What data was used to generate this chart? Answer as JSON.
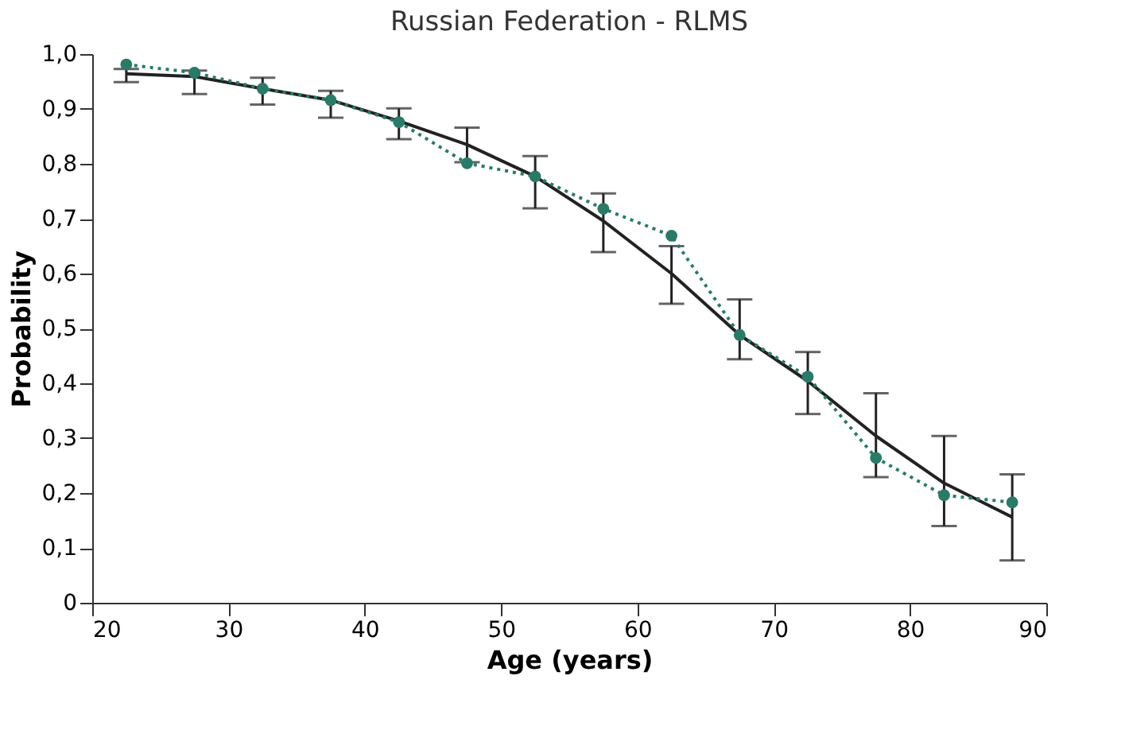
{
  "chart_data": {
    "type": "line",
    "title": "Russian Federation - RLMS",
    "xlabel": "Age (years)",
    "ylabel": "Probability",
    "x": [
      22.5,
      27.5,
      32.5,
      37.5,
      42.5,
      47.5,
      52.5,
      57.5,
      62.5,
      67.5,
      72.5,
      77.5,
      82.5,
      87.5
    ],
    "series": [
      {
        "color": "#222222",
        "line_style": "solid",
        "marker": "none",
        "values": [
          0.964,
          0.959,
          0.937,
          0.916,
          0.878,
          0.835,
          0.777,
          0.696,
          0.6,
          0.488,
          0.404,
          0.304,
          0.218,
          0.156
        ],
        "errors": [
          [
            0.949,
            0.973
          ],
          [
            0.927,
            0.97
          ],
          [
            0.908,
            0.957
          ],
          [
            0.884,
            0.933
          ],
          [
            0.845,
            0.901
          ],
          [
            0.803,
            0.866
          ],
          [
            0.719,
            0.814
          ],
          [
            0.639,
            0.746
          ],
          [
            0.545,
            0.65
          ],
          [
            0.444,
            0.553
          ],
          [
            0.344,
            0.457
          ],
          [
            0.229,
            0.382
          ],
          [
            0.14,
            0.304
          ],
          [
            0.077,
            0.234
          ]
        ]
      },
      {
        "color": "#2a7a68",
        "line_style": "dotted",
        "marker": "circle",
        "values": [
          0.981,
          0.966,
          0.937,
          0.916,
          0.876,
          0.801,
          0.777,
          0.718,
          0.669,
          0.488,
          0.412,
          0.264,
          0.196,
          0.183
        ]
      }
    ],
    "xlim": [
      20,
      90
    ],
    "xticks": [
      20,
      30,
      40,
      50,
      60,
      70,
      80,
      90
    ],
    "ylim": [
      0,
      1
    ],
    "yticks": [
      0,
      {
        "value": 0.1,
        "label": "0,1"
      },
      {
        "value": 0.2,
        "label": "0,2"
      },
      {
        "value": 0.3,
        "label": "0,3"
      },
      {
        "value": 0.4,
        "label": "0,4"
      },
      {
        "value": 0.5,
        "label": "0,5"
      },
      {
        "value": 0.6,
        "label": "0,6"
      },
      {
        "value": 0.7,
        "label": "0,7"
      },
      {
        "value": 0.8,
        "label": "0,8"
      },
      {
        "value": 0.9,
        "label": "0,9"
      },
      {
        "value": 1.0,
        "label": "1,0"
      }
    ],
    "grid": false
  }
}
